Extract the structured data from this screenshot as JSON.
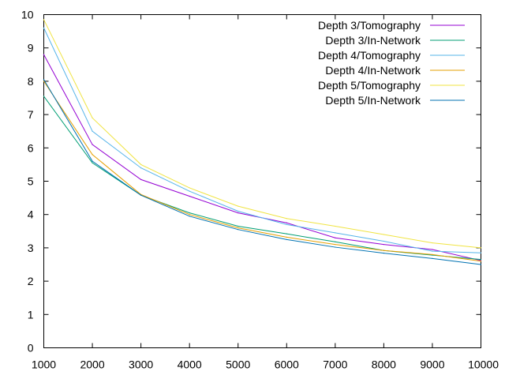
{
  "chart_data": {
    "type": "line",
    "x": [
      1000,
      2000,
      3000,
      4000,
      5000,
      6000,
      7000,
      8000,
      9000,
      10000
    ],
    "xlim": [
      1000,
      10000
    ],
    "ylim": [
      0,
      10
    ],
    "xticks": [
      "1000",
      "2000",
      "3000",
      "4000",
      "5000",
      "6000",
      "7000",
      "8000",
      "9000",
      "10000"
    ],
    "yticks": [
      "0",
      "1",
      "2",
      "3",
      "4",
      "5",
      "6",
      "7",
      "8",
      "9",
      "10"
    ],
    "grid": false,
    "legend_position": "top-right",
    "series": [
      {
        "name": "Depth 3/Tomography",
        "color": "#9400d3",
        "values": [
          8.8,
          6.1,
          5.05,
          4.55,
          4.05,
          3.75,
          3.3,
          3.1,
          2.95,
          2.62
        ]
      },
      {
        "name": "Depth 3/In-Network",
        "color": "#009e73",
        "values": [
          7.55,
          5.55,
          4.58,
          4.05,
          3.65,
          3.42,
          3.18,
          2.92,
          2.78,
          2.65
        ]
      },
      {
        "name": "Depth 4/Tomography",
        "color": "#56b4e9",
        "values": [
          9.6,
          6.5,
          5.4,
          4.7,
          4.1,
          3.7,
          3.45,
          3.2,
          2.9,
          2.85
        ]
      },
      {
        "name": "Depth 4/In-Network",
        "color": "#e69f00",
        "values": [
          8.0,
          5.8,
          4.6,
          4.0,
          3.6,
          3.32,
          3.1,
          2.92,
          2.8,
          2.6
        ]
      },
      {
        "name": "Depth 5/Tomography",
        "color": "#f0e442",
        "values": [
          9.85,
          6.9,
          5.5,
          4.8,
          4.25,
          3.88,
          3.65,
          3.4,
          3.15,
          3.0
        ]
      },
      {
        "name": "Depth 5/In-Network",
        "color": "#0072b2",
        "values": [
          8.05,
          5.6,
          4.58,
          3.95,
          3.55,
          3.25,
          3.02,
          2.84,
          2.68,
          2.5
        ]
      }
    ]
  }
}
